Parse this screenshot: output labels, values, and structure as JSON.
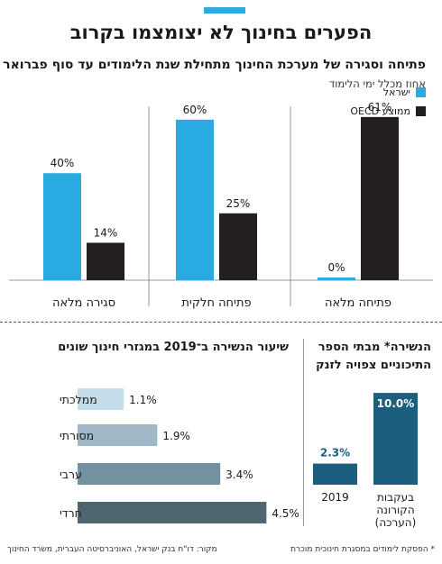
{
  "header": {
    "title": "הפערים בחינוך לא יצומצמו בקרוב",
    "subtitle": "פתיחה וסגירה של מערכת החינוך מתחילת שנת הלימודים עד סוף פברואר",
    "note": "אחוז מכלל ימי הלימוד"
  },
  "colors": {
    "israel": "#29abe2",
    "oecd": "#231f20",
    "accent": "#29abe2",
    "dropout": "#1b5e7e",
    "sectors": [
      "#c5dceb",
      "#9fb8c8",
      "#74919f",
      "#4d6670"
    ]
  },
  "chart_data": [
    {
      "type": "bar",
      "categories": [
        "סגירה מלאה",
        "פתיחה חלקית",
        "פתיחה מלאה"
      ],
      "series": [
        {
          "name": "ישראל",
          "values": [
            40,
            60,
            0
          ]
        },
        {
          "name": "ממוצע OECD",
          "values": [
            14,
            25,
            61
          ]
        }
      ],
      "value_labels": {
        "ישראל": [
          "40%",
          "60%",
          "0%"
        ],
        "ממוצע OECD": [
          "14%",
          "25%",
          "61%"
        ]
      },
      "legend": "top-right",
      "ylim": [
        0,
        65
      ]
    },
    {
      "type": "bar",
      "orientation": "horizontal",
      "title": "שיעור הנשירה ב־2019 במגזרי חינוך שונים",
      "categories": [
        "ממלכתי",
        "מסורתי",
        "ערבי",
        "חרדי"
      ],
      "values": [
        1.1,
        1.9,
        3.4,
        4.5
      ],
      "value_labels": [
        "1.1%",
        "1.9%",
        "3.4%",
        "4.5%"
      ],
      "xlim": [
        0,
        4.6
      ]
    },
    {
      "type": "bar",
      "title": "הנשירה* מבתי הספר התיכוניים צפויה לזנק",
      "title_lines": [
        "הנשירה* מבתי הספר",
        "התיכוניים צפויה לזנק"
      ],
      "categories": [
        "2019",
        "בעקבות הקורונה (הערכה)"
      ],
      "category_lines": [
        [
          "2019"
        ],
        [
          "בעקבות",
          "הקורונה",
          "(הערכה)"
        ]
      ],
      "values": [
        2.3,
        10.0
      ],
      "value_labels": [
        "2.3%",
        "10.0%"
      ],
      "ylim": [
        0,
        10.5
      ]
    }
  ],
  "footer": {
    "source": "מקור: דו\"ח בנק ישראל, האוניברסיטה העברית, משרד החינוך",
    "footnote": "* הפסקת לימודים במסגרת חינוכית מוכרת"
  }
}
